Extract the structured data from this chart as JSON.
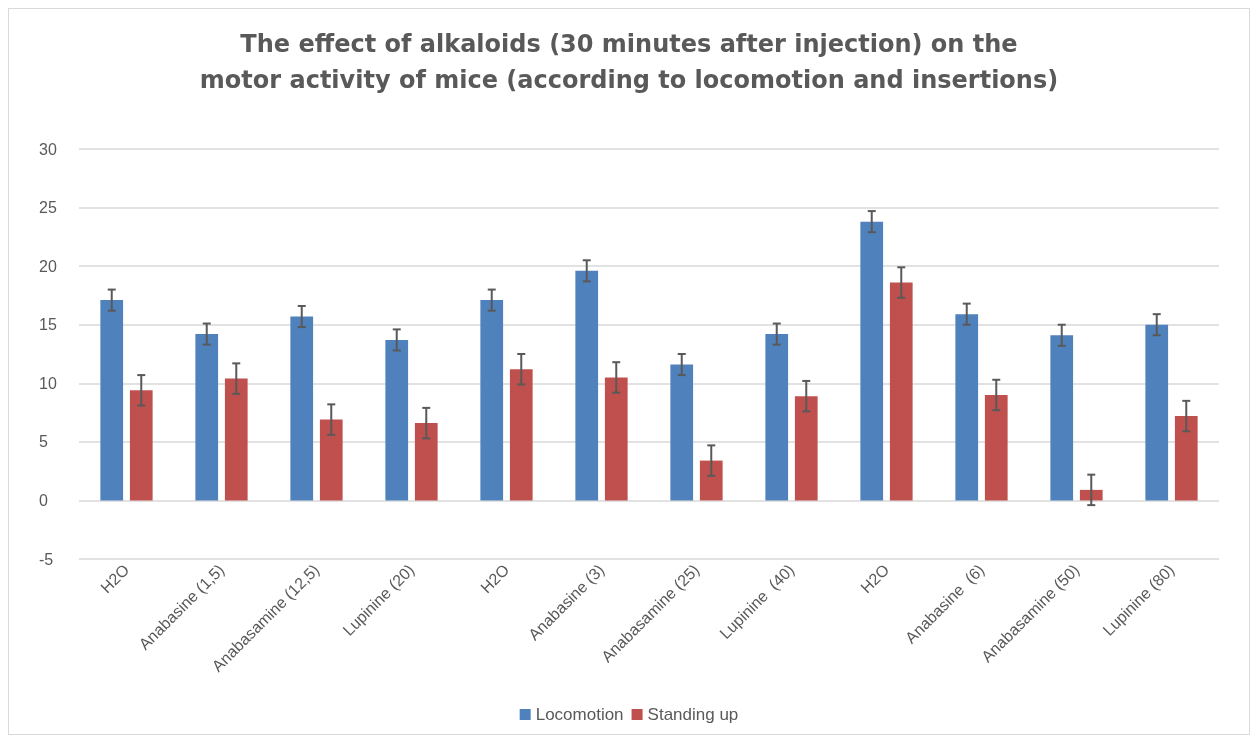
{
  "chart_data": {
    "type": "bar",
    "title": "The effect of alkaloids (30 minutes after injection) on the\nmotor activity of mice (according to locomotion and insertions)",
    "categories": [
      "H2O",
      "Anabasine (1,5)",
      "Anabasamine (12,5)",
      "Lupinine (20)",
      "H2O",
      "Anabasine (3)",
      "Anabasamine (25)",
      "Lupinine  (40)",
      "H2O",
      "Anabasine  (6)",
      "Anabasamine (50)",
      "Lupinine (80)"
    ],
    "series": [
      {
        "name": "Locomotion",
        "color": "#4f81bd",
        "values": [
          17.1,
          14.2,
          15.7,
          13.7,
          17.1,
          19.6,
          11.6,
          14.2,
          23.8,
          15.9,
          14.1,
          15.0
        ],
        "errors": [
          0.9,
          0.9,
          0.9,
          0.9,
          0.9,
          0.9,
          0.9,
          0.9,
          0.9,
          0.9,
          0.9,
          0.9
        ]
      },
      {
        "name": "Standing up",
        "color": "#c0504d",
        "values": [
          9.4,
          10.4,
          6.9,
          6.6,
          11.2,
          10.5,
          3.4,
          8.9,
          18.6,
          9.0,
          0.9,
          7.2
        ],
        "errors": [
          1.3,
          1.3,
          1.3,
          1.3,
          1.3,
          1.3,
          1.3,
          1.3,
          1.3,
          1.3,
          1.3,
          1.3
        ]
      }
    ],
    "ylim": [
      -5,
      30
    ],
    "yticks": [
      -5,
      0,
      5,
      10,
      15,
      20,
      25,
      30
    ],
    "grid": "y",
    "legend": "bottom"
  }
}
